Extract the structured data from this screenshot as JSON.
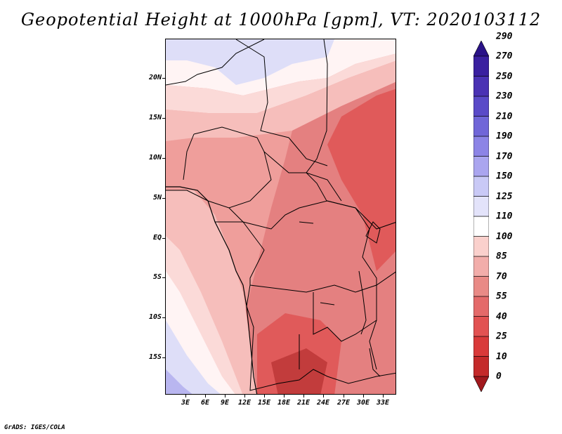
{
  "title": "Geopotential Height at 1000hPa [gpm], VT: 2020103112",
  "credit": "GrADS: IGES/COLA",
  "map": {
    "region": "Central Africa",
    "lat_labels": [
      "20N",
      "15N",
      "10N",
      "5N",
      "EQ",
      "5S",
      "10S",
      "15S"
    ],
    "lon_labels": [
      "3E",
      "6E",
      "9E",
      "12E",
      "15E",
      "18E",
      "21E",
      "24E",
      "27E",
      "30E",
      "33E"
    ]
  },
  "colorbar": {
    "levels": [
      "0",
      "10",
      "25",
      "40",
      "55",
      "70",
      "85",
      "100",
      "110",
      "125",
      "150",
      "170",
      "190",
      "210",
      "230",
      "250",
      "270",
      "290"
    ],
    "colors": [
      "#a1191d",
      "#c42a2a",
      "#d93a3a",
      "#e25252",
      "#e46a6a",
      "#e98a86",
      "#f2adaa",
      "#fad0cc",
      "#ffffff",
      "#e3e3fa",
      "#c9c9f6",
      "#aaa5ef",
      "#8c84e6",
      "#7066d8",
      "#5a4ac8",
      "#4a32b4",
      "#3a20a0",
      "#2a1288"
    ]
  },
  "field_colors": {
    "deep_red": "#c23c3c",
    "red": "#e05a5a",
    "mid_red": "#e48080",
    "light_red": "#ef9e9b",
    "pink": "#f6bebb",
    "pale_pink": "#fbdad8",
    "white": "#fff4f4",
    "lavender": "#dedef8",
    "purple": "#b9b6f0"
  }
}
